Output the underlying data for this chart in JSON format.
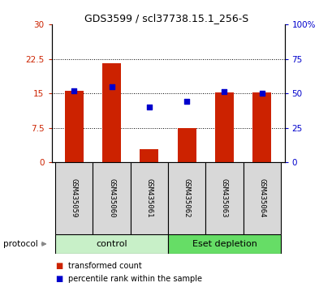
{
  "title": "GDS3599 / scl37738.15.1_256-S",
  "samples": [
    "GSM435059",
    "GSM435060",
    "GSM435061",
    "GSM435062",
    "GSM435063",
    "GSM435064"
  ],
  "bar_values": [
    15.5,
    21.5,
    2.8,
    7.5,
    15.2,
    15.2
  ],
  "dot_values": [
    52,
    55,
    40,
    44,
    51,
    50
  ],
  "bar_color": "#cc2200",
  "dot_color": "#0000cc",
  "ylim_left": [
    0,
    30
  ],
  "ylim_right": [
    0,
    100
  ],
  "yticks_left": [
    0,
    7.5,
    15,
    22.5,
    30
  ],
  "yticks_right": [
    0,
    25,
    50,
    75,
    100
  ],
  "ytick_labels_left": [
    "0",
    "7.5",
    "15",
    "22.5",
    "30"
  ],
  "ytick_labels_right": [
    "0",
    "25",
    "50",
    "75",
    "100%"
  ],
  "groups": [
    {
      "label": "control",
      "indices": [
        0,
        1,
        2
      ],
      "color": "#c8f0c8"
    },
    {
      "label": "Eset depletion",
      "indices": [
        3,
        4,
        5
      ],
      "color": "#66dd66"
    }
  ],
  "protocol_label": "protocol",
  "legend_bar_label": "transformed count",
  "legend_dot_label": "percentile rank within the sample",
  "bg_color": "#d8d8d8",
  "bar_width": 0.5,
  "tick_label_color_left": "#cc2200",
  "tick_label_color_right": "#0000cc",
  "fig_width": 4.1,
  "fig_height": 3.54,
  "dpi": 100
}
